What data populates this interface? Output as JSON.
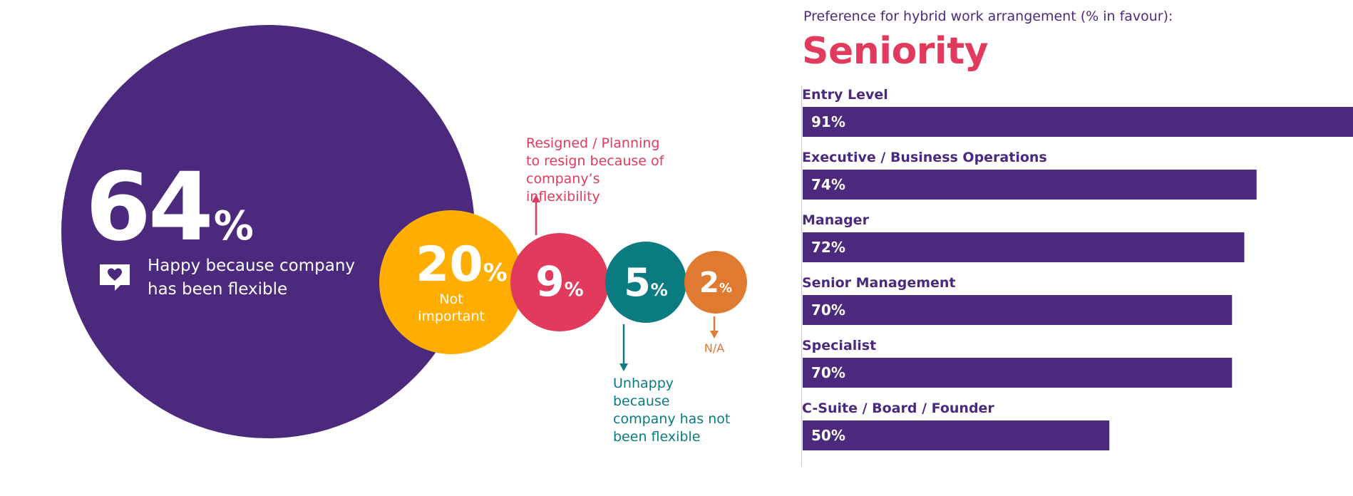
{
  "colors": {
    "purple": "#4b2a7d",
    "yellow": "#ffae00",
    "red": "#e23a5c",
    "teal": "#0a7b80",
    "orange": "#e07a30",
    "white": "#ffffff"
  },
  "left_panel": {
    "big": {
      "value": "64",
      "unit": "%",
      "label": "Happy because company has been flexible",
      "icon": "heart-speech-bubble-icon"
    },
    "not_important": {
      "value": "20",
      "unit": "%",
      "label": "Not important"
    },
    "resigned": {
      "value": "9",
      "unit": "%",
      "annotation": "Resigned / Planning to resign because of company’s inflexibility"
    },
    "unhappy": {
      "value": "5",
      "unit": "%",
      "annotation": "Unhappy because company has not been flexible"
    },
    "na": {
      "value": "2",
      "unit": "%",
      "annotation": "N/A"
    }
  },
  "chart_data": [
    {
      "type": "bubble",
      "values": [
        64,
        20,
        9,
        5,
        2
      ],
      "labels": [
        "Happy because company has been flexible",
        "Not important",
        "Resigned / Planning to resign because of company’s inflexibility",
        "Unhappy because company has not been flexible",
        "N/A"
      ],
      "unit": "%"
    },
    {
      "type": "bar",
      "orientation": "horizontal",
      "caption": "Preference for hybrid work arrangement (% in favour):",
      "title": "Seniority",
      "categories": [
        "Entry Level",
        "Executive / Business Operations",
        "Manager",
        "Senior Management",
        "Specialist",
        "C-Suite / Board / Founder"
      ],
      "values": [
        91,
        74,
        72,
        70,
        70,
        50
      ],
      "value_labels": [
        "91%",
        "74%",
        "72%",
        "70%",
        "70%",
        "50%"
      ],
      "xlim": [
        0,
        100
      ],
      "bar_color": "#4b2a7d"
    }
  ]
}
